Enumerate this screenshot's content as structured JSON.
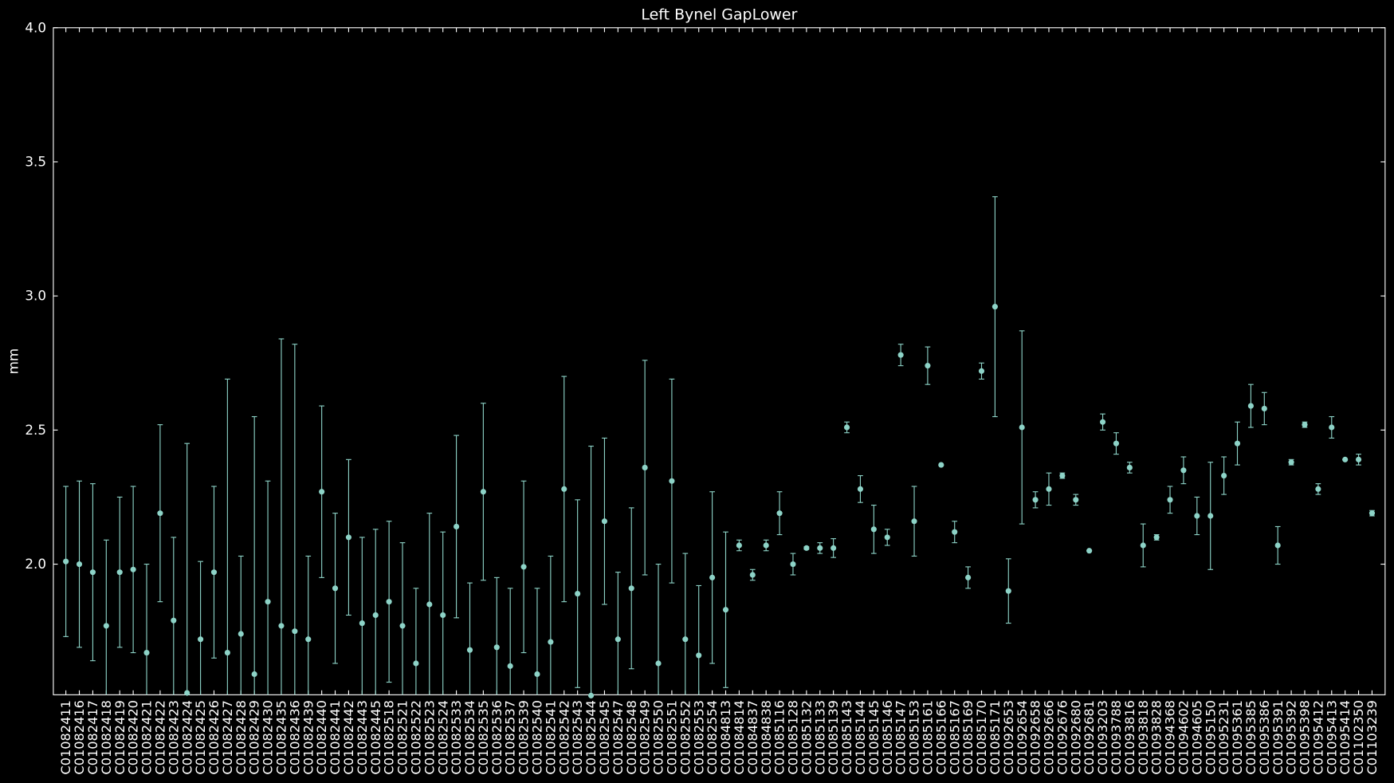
{
  "chart_data": {
    "type": "errorbar",
    "title": "Left Bynel GapLower",
    "y_label": "mm",
    "categories": [
      "C01082411",
      "C01082416",
      "C01082417",
      "C01082418",
      "C01082419",
      "C01082420",
      "C01082421",
      "C01082422",
      "C01082423",
      "C01082424",
      "C01082425",
      "C01082426",
      "C01082427",
      "C01082428",
      "C01082429",
      "C01082430",
      "C01082435",
      "C01082436",
      "C01082439",
      "C01082440",
      "C01082441",
      "C01082442",
      "C01082443",
      "C01082445",
      "C01082518",
      "C01082521",
      "C01082522",
      "C01082523",
      "C01082524",
      "C01082533",
      "C01082534",
      "C01082535",
      "C01082536",
      "C01082537",
      "C01082539",
      "C01082540",
      "C01082541",
      "C01082542",
      "C01082543",
      "C01082544",
      "C01082545",
      "C01082547",
      "C01082548",
      "C01082549",
      "C01082550",
      "C01082551",
      "C01082552",
      "C01082553",
      "C01082554",
      "C01084813",
      "C01084814",
      "C01084837",
      "C01084838",
      "C01085116",
      "C01085128",
      "C01085132",
      "C01085133",
      "C01085139",
      "C01085143",
      "C01085144",
      "C01085145",
      "C01085146",
      "C01085147",
      "C01085153",
      "C01085161",
      "C01085166",
      "C01085167",
      "C01085169",
      "C01085170",
      "C01085171",
      "C01092653",
      "C01092654",
      "C01092658",
      "C01092666",
      "C01092676",
      "C01092680",
      "C01092681",
      "C01093203",
      "C01093788",
      "C01093816",
      "C01093818",
      "C01093828",
      "C01094368",
      "C01094602",
      "C01094605",
      "C01095150",
      "C01095231",
      "C01095361",
      "C01095385",
      "C01095386",
      "C01095391",
      "C01095392",
      "C01095398",
      "C01095412",
      "C01095413",
      "C01095414",
      "C01102350",
      "C01103239"
    ],
    "values": [
      2.01,
      2.0,
      1.97,
      1.77,
      1.97,
      1.98,
      1.67,
      2.19,
      1.79,
      1.52,
      1.72,
      1.97,
      1.67,
      1.74,
      1.59,
      1.86,
      1.77,
      1.75,
      1.72,
      2.27,
      1.91,
      2.1,
      1.78,
      1.81,
      1.86,
      1.77,
      1.63,
      1.85,
      1.81,
      2.14,
      1.68,
      2.27,
      1.69,
      1.62,
      1.99,
      1.59,
      1.71,
      2.28,
      1.89,
      1.51,
      2.16,
      1.72,
      1.91,
      2.36,
      1.63,
      2.31,
      1.72,
      1.66,
      1.95,
      1.83,
      2.07,
      1.96,
      2.07,
      2.19,
      2.0,
      2.06,
      2.06,
      2.06,
      2.51,
      2.28,
      2.13,
      2.1,
      2.78,
      2.16,
      2.74,
      2.37,
      2.12,
      1.95,
      2.72,
      2.96,
      1.9,
      2.51,
      2.24,
      2.28,
      2.33,
      2.24,
      2.05,
      2.53,
      2.45,
      2.36,
      2.07,
      2.1,
      2.24,
      2.35,
      2.18,
      2.18,
      2.33,
      2.45,
      2.59,
      2.58,
      2.07,
      2.38,
      2.52,
      2.28,
      2.51,
      2.39,
      2.39,
      2.19
    ],
    "errors": [
      0.28,
      0.31,
      0.33,
      0.32,
      0.28,
      0.31,
      0.33,
      0.33,
      0.31,
      0.93,
      0.29,
      0.32,
      1.02,
      0.29,
      0.96,
      0.45,
      1.07,
      1.07,
      0.31,
      0.32,
      0.28,
      0.29,
      0.32,
      0.32,
      0.3,
      0.31,
      0.28,
      0.34,
      0.31,
      0.34,
      0.25,
      0.33,
      0.26,
      0.29,
      0.32,
      0.32,
      0.32,
      0.42,
      0.35,
      0.93,
      0.31,
      0.25,
      0.3,
      0.4,
      0.37,
      0.38,
      0.32,
      0.26,
      0.32,
      0.29,
      0.02,
      0.02,
      0.02,
      0.08,
      0.04,
      0.005,
      0.02,
      0.035,
      0.02,
      0.05,
      0.09,
      0.03,
      0.04,
      0.13,
      0.07,
      0,
      0.04,
      0.04,
      0.03,
      0.41,
      0.12,
      0.36,
      0.03,
      0.06,
      0.01,
      0.02,
      0,
      0.03,
      0.04,
      0.02,
      0.08,
      0.01,
      0.05,
      0.05,
      0.07,
      0.2,
      0.07,
      0.08,
      0.08,
      0.06,
      0.07,
      0.01,
      0.01,
      0.02,
      0.04,
      0,
      0.02,
      0.01
    ],
    "color": "#8dd3c7",
    "ylim": [
      1.513,
      4.0
    ],
    "yticks": [
      {
        "value": 2,
        "label": "2.0"
      },
      {
        "value": 2.5,
        "label": "2.5"
      },
      {
        "value": 3,
        "label": "3.0"
      },
      {
        "value": 3.5,
        "label": "3.5"
      },
      {
        "value": 4,
        "label": "4.0"
      }
    ]
  }
}
